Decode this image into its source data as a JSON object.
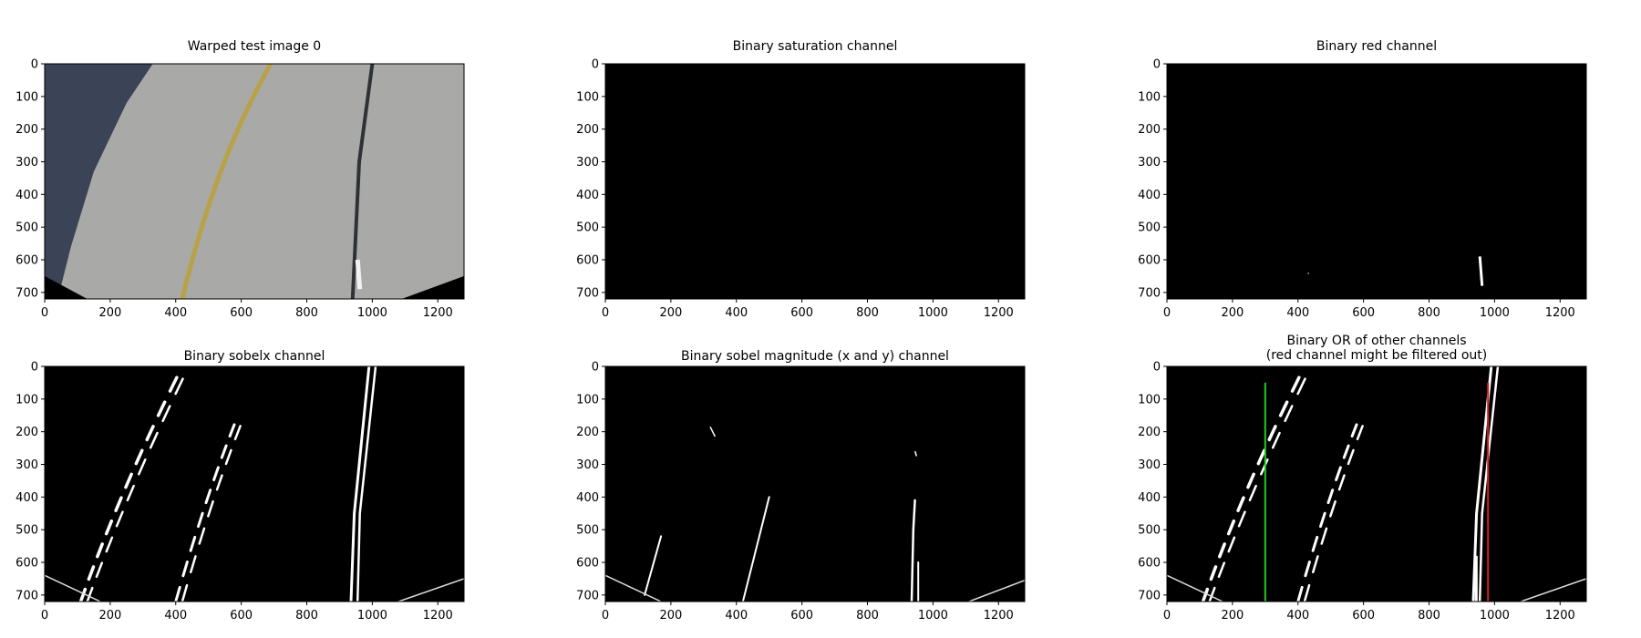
{
  "chart_data": [
    {
      "type": "image",
      "title": "Warped test image 0",
      "xlim": [
        0,
        1280
      ],
      "ylim": [
        720,
        0
      ],
      "xticks": [
        0,
        200,
        400,
        600,
        800,
        1000,
        1200
      ],
      "yticks": [
        0,
        100,
        200,
        300,
        400,
        500,
        600,
        700
      ],
      "content": "road-photo"
    },
    {
      "type": "image",
      "title": "Binary saturation channel",
      "xlim": [
        0,
        1280
      ],
      "ylim": [
        720,
        0
      ],
      "xticks": [
        0,
        200,
        400,
        600,
        800,
        1000,
        1200
      ],
      "yticks": [
        0,
        100,
        200,
        300,
        400,
        500,
        600,
        700
      ],
      "content": "black"
    },
    {
      "type": "image",
      "title": "Binary red channel",
      "xlim": [
        0,
        1280
      ],
      "ylim": [
        720,
        0
      ],
      "xticks": [
        0,
        200,
        400,
        600,
        800,
        1000,
        1200
      ],
      "yticks": [
        0,
        100,
        200,
        300,
        400,
        500,
        600,
        700
      ],
      "content": "red-binary"
    },
    {
      "type": "image",
      "title": "Binary sobelx channel",
      "xlim": [
        0,
        1280
      ],
      "ylim": [
        720,
        0
      ],
      "xticks": [
        0,
        200,
        400,
        600,
        800,
        1000,
        1200
      ],
      "yticks": [
        0,
        100,
        200,
        300,
        400,
        500,
        600,
        700
      ],
      "content": "sobelx"
    },
    {
      "type": "image",
      "title": "Binary sobel magnitude (x and y) channel",
      "xlim": [
        0,
        1280
      ],
      "ylim": [
        720,
        0
      ],
      "xticks": [
        0,
        200,
        400,
        600,
        800,
        1000,
        1200
      ],
      "yticks": [
        0,
        100,
        200,
        300,
        400,
        500,
        600,
        700
      ],
      "content": "sobelmag"
    },
    {
      "type": "image",
      "title": "Binary OR of other channels\n(red channel might be filtered out)",
      "xlim": [
        0,
        1280
      ],
      "ylim": [
        720,
        0
      ],
      "xticks": [
        0,
        200,
        400,
        600,
        800,
        1000,
        1200
      ],
      "yticks": [
        0,
        100,
        200,
        300,
        400,
        500,
        600,
        700
      ],
      "content": "combined",
      "vertical_lines": [
        {
          "x": 300,
          "y_start": 50,
          "y_end": 720,
          "color": "#22cc22"
        },
        {
          "x": 980,
          "y_start": 50,
          "y_end": 720,
          "color": "#cc2222"
        }
      ]
    }
  ]
}
